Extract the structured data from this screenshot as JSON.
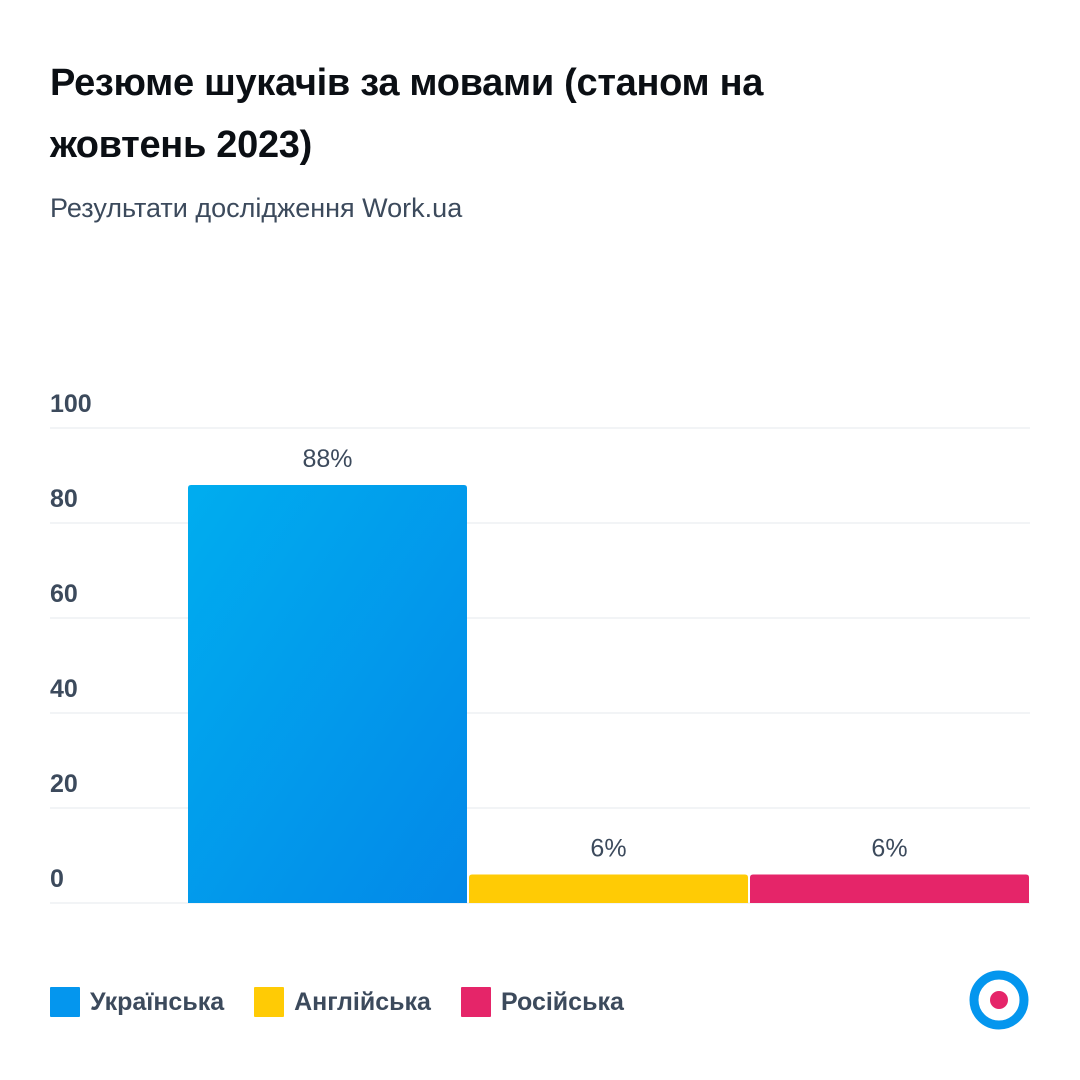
{
  "header": {
    "title": "Резюме шукачів за мовами (станом на жовтень 2023)",
    "subtitle": "Результати дослідження Work.ua"
  },
  "colors": {
    "ukrainian": "#0496ee",
    "english": "#ffcb05",
    "russian": "#e52569",
    "axis_text": "#3c4a5c",
    "grid": "#e6e9ee",
    "logo_ring": "#0496ee",
    "logo_dot": "#e52569"
  },
  "chart_data": {
    "type": "bar",
    "title": "Резюме шукачів за мовами (станом на жовтень 2023)",
    "subtitle": "Результати дослідження Work.ua",
    "xlabel": "",
    "ylabel": "",
    "ylim": [
      0,
      100
    ],
    "yticks": [
      0,
      20,
      40,
      60,
      80,
      100
    ],
    "grid": true,
    "categories": [
      "Українська",
      "Англійська",
      "Російська"
    ],
    "values": [
      88,
      6,
      6
    ],
    "data_labels": [
      "88%",
      "6%",
      "6%"
    ],
    "colors": [
      "#0496ee",
      "#ffcb05",
      "#e52569"
    ],
    "legend": {
      "position": "bottom-left",
      "entries": [
        "Українська",
        "Англійська",
        "Російська"
      ]
    }
  }
}
